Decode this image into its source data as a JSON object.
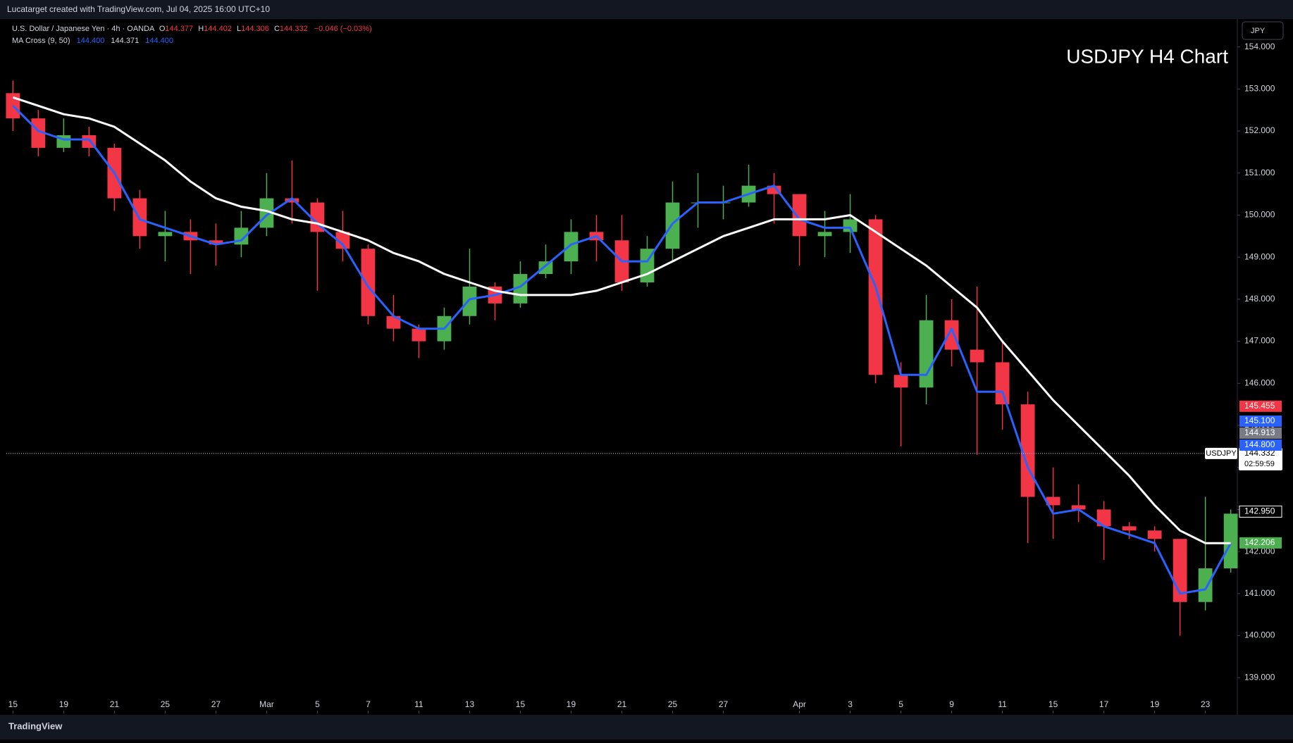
{
  "header": {
    "credit": "Lucatarget created with TradingView.com, Jul 04, 2025 16:00 UTC+10",
    "footer": "TradingView",
    "currency": "JPY"
  },
  "legend": {
    "symbol": "U.S. Dollar / Japanese Yen · 4h · OANDA",
    "o_label": "O",
    "o": "144.377",
    "h_label": "H",
    "h": "144.402",
    "l_label": "L",
    "l": "144.306",
    "c_label": "C",
    "c": "144.332",
    "change": "−0.046 (−0.03%)",
    "indicator": "MA Cross (9, 50)",
    "ind_values": [
      "144.400",
      "144.371",
      "144.400"
    ]
  },
  "chart_data": {
    "type": "candlestick",
    "title": "USDJPY H4 Chart",
    "up_color": "#4caf50",
    "down_color": "#f23645",
    "open": [
      152.9,
      152.3,
      151.6,
      151.9,
      151.6,
      150.4,
      149.5,
      149.6,
      149.4,
      149.3,
      149.7,
      150.4,
      150.3,
      149.6,
      149.2,
      147.6,
      147.3,
      147.0,
      147.6,
      148.3,
      147.9,
      148.6,
      148.9,
      149.6,
      149.4,
      148.4,
      149.2,
      150.3,
      150.3,
      150.3,
      150.7,
      150.5,
      149.5,
      149.6,
      149.9,
      146.2,
      145.9,
      147.5,
      146.8,
      146.5,
      145.5,
      143.3,
      143.1,
      143.0,
      142.6,
      142.5,
      142.3,
      140.8,
      141.6
    ],
    "high": [
      153.2,
      152.5,
      152.3,
      152.1,
      151.7,
      150.6,
      150.1,
      149.9,
      149.8,
      150.1,
      151.0,
      151.3,
      150.4,
      150.1,
      149.3,
      148.1,
      147.4,
      147.8,
      149.2,
      148.4,
      148.9,
      149.3,
      149.9,
      150.0,
      150.0,
      149.5,
      150.8,
      151.0,
      150.7,
      151.2,
      151.0,
      150.5,
      150.1,
      150.5,
      150.0,
      146.5,
      148.1,
      148.0,
      148.3,
      147.0,
      145.8,
      144.0,
      143.6,
      143.2,
      142.7,
      142.6,
      142.3,
      143.3,
      143.0
    ],
    "low": [
      152.0,
      151.4,
      151.5,
      151.4,
      150.1,
      149.2,
      148.9,
      148.6,
      148.8,
      149.0,
      149.5,
      149.8,
      148.2,
      148.9,
      147.4,
      147.0,
      146.6,
      146.8,
      147.4,
      147.5,
      147.8,
      148.5,
      148.6,
      148.9,
      148.2,
      148.3,
      148.9,
      149.7,
      149.9,
      150.2,
      149.8,
      148.8,
      149.0,
      149.1,
      146.0,
      144.5,
      145.5,
      146.4,
      144.3,
      144.9,
      142.2,
      142.3,
      142.7,
      141.8,
      142.3,
      142.0,
      140.0,
      140.6,
      141.5
    ],
    "close": [
      152.3,
      151.6,
      151.9,
      151.6,
      150.4,
      149.5,
      149.6,
      149.4,
      149.3,
      149.7,
      150.4,
      150.3,
      149.6,
      149.2,
      147.6,
      147.3,
      147.0,
      147.6,
      148.3,
      147.9,
      148.6,
      148.9,
      149.6,
      149.4,
      148.4,
      149.2,
      150.3,
      150.3,
      150.3,
      150.7,
      150.5,
      149.5,
      149.6,
      149.9,
      146.2,
      145.9,
      147.5,
      146.8,
      146.5,
      145.5,
      143.3,
      143.1,
      143.0,
      142.6,
      142.5,
      142.3,
      140.8,
      141.6,
      142.9
    ],
    "series": [
      {
        "name": "MA 9",
        "color": "#2962ff",
        "values": [
          152.6,
          152.0,
          151.8,
          151.8,
          151.0,
          149.9,
          149.7,
          149.5,
          149.3,
          149.4,
          150.0,
          150.4,
          149.8,
          149.3,
          148.3,
          147.6,
          147.3,
          147.3,
          148.0,
          148.1,
          148.3,
          148.8,
          149.3,
          149.5,
          148.9,
          148.9,
          149.8,
          150.3,
          150.3,
          150.5,
          150.7,
          149.9,
          149.7,
          149.7,
          148.3,
          146.2,
          146.2,
          147.3,
          145.8,
          145.8,
          144.0,
          142.9,
          143.0,
          142.6,
          142.4,
          142.2,
          141.0,
          141.1,
          142.2
        ]
      },
      {
        "name": "MA 50",
        "color": "#ffffff",
        "values": [
          152.8,
          152.6,
          152.4,
          152.3,
          152.1,
          151.7,
          151.3,
          150.8,
          150.4,
          150.2,
          150.1,
          149.9,
          149.8,
          149.6,
          149.4,
          149.1,
          148.9,
          148.6,
          148.4,
          148.2,
          148.1,
          148.1,
          148.1,
          148.2,
          148.4,
          148.6,
          148.9,
          149.2,
          149.5,
          149.7,
          149.9,
          149.9,
          149.9,
          150.0,
          149.6,
          149.2,
          148.8,
          148.3,
          147.8,
          147.0,
          146.3,
          145.6,
          145.0,
          144.4,
          143.8,
          143.1,
          142.5,
          142.2,
          142.2
        ]
      }
    ],
    "xlim": [
      -0.26,
      48.26
    ],
    "xticks": [
      {
        "value": 0,
        "label": "15"
      },
      {
        "value": 2,
        "label": "19"
      },
      {
        "value": 4,
        "label": "21"
      },
      {
        "value": 6,
        "label": "25"
      },
      {
        "value": 8,
        "label": "27"
      },
      {
        "value": 10,
        "label": "Mar"
      },
      {
        "value": 12,
        "label": "5"
      },
      {
        "value": 14,
        "label": "7"
      },
      {
        "value": 16,
        "label": "11"
      },
      {
        "value": 18,
        "label": "13"
      },
      {
        "value": 20,
        "label": "15"
      },
      {
        "value": 22,
        "label": "19"
      },
      {
        "value": 24,
        "label": "21"
      },
      {
        "value": 26,
        "label": "25"
      },
      {
        "value": 28,
        "label": "27"
      },
      {
        "value": 31,
        "label": "Apr"
      },
      {
        "value": 33,
        "label": "3"
      },
      {
        "value": 35,
        "label": "5"
      },
      {
        "value": 37,
        "label": "9"
      },
      {
        "value": 39,
        "label": "11"
      },
      {
        "value": 41,
        "label": "15"
      },
      {
        "value": 43,
        "label": "17"
      },
      {
        "value": 45,
        "label": "19"
      },
      {
        "value": 47,
        "label": "23"
      }
    ],
    "ylim": [
      138.15,
      154.63
    ],
    "yticks": [
      {
        "value": 139,
        "label": "139.000"
      },
      {
        "value": 140,
        "label": "140.000"
      },
      {
        "value": 141,
        "label": "141.000"
      },
      {
        "value": 142,
        "label": "142.000"
      },
      {
        "value": 143,
        "label": "143.000"
      },
      {
        "value": 144,
        "label": "144.000"
      },
      {
        "value": 145,
        "label": "145.000"
      },
      {
        "value": 146,
        "label": "146.000"
      },
      {
        "value": 147,
        "label": "147.000"
      },
      {
        "value": 148,
        "label": "148.000"
      },
      {
        "value": 149,
        "label": "149.000"
      },
      {
        "value": 150,
        "label": "150.000"
      },
      {
        "value": 151,
        "label": "151.000"
      },
      {
        "value": 152,
        "label": "152.000"
      },
      {
        "value": 153,
        "label": "153.000"
      },
      {
        "value": 154,
        "label": "154.000"
      }
    ],
    "price_tags": [
      {
        "value": 145.455,
        "label": "145.455",
        "color": "#f23645"
      },
      {
        "value": 145.1,
        "label": "145.100",
        "color": "#2962ff"
      },
      {
        "value": 144.913,
        "label": "144.913",
        "color": "#787b86"
      },
      {
        "value": 144.8,
        "label": "144.800",
        "color": "#2962ff"
      }
    ],
    "last_price": {
      "symbol": "USDJPY",
      "value": 144.332,
      "label": "144.332",
      "countdown": "02:59:59"
    },
    "level_tags": [
      {
        "value": 142.95,
        "label": "142.950",
        "color": "#000000"
      },
      {
        "value": 142.206,
        "label": "142.206",
        "color": "#4caf50"
      }
    ]
  }
}
